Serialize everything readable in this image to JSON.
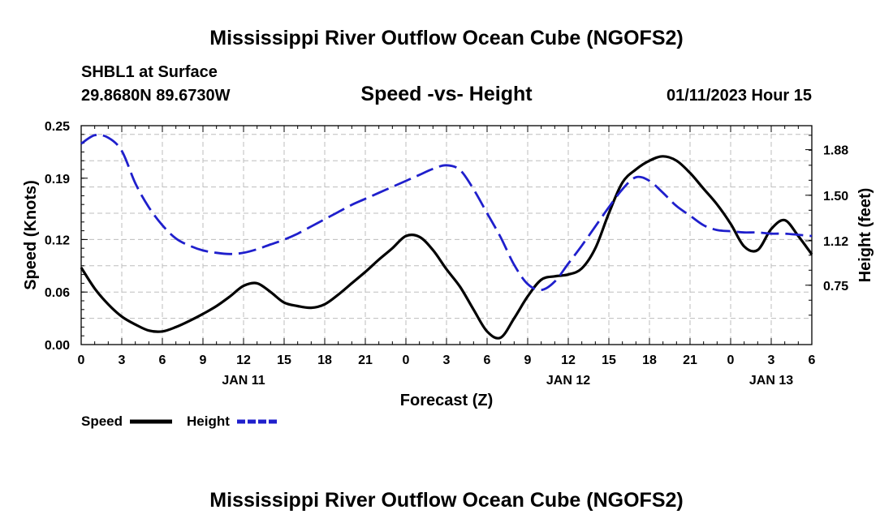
{
  "header": {
    "title": "Mississippi River Outflow Ocean Cube (NGOFS2)",
    "station": "SHBL1 at Surface",
    "coords": "29.8680N  89.6730W",
    "subtitle": "Speed -vs- Height",
    "datetime": "01/11/2023 Hour 15"
  },
  "footer": {
    "title": "Mississippi River Outflow Ocean Cube (NGOFS2)"
  },
  "legend": {
    "speed_label": "Speed",
    "height_label": "Height"
  },
  "colors": {
    "speed": "#000000",
    "height": "#1f1fcc",
    "grid": "#bdbdbd"
  },
  "chart_data": {
    "type": "line",
    "title": "Speed -vs- Height",
    "xlabel": "Forecast (Z)",
    "ylabel": "Speed (Knots)",
    "y2label": "Height (feet)",
    "xlim": [
      0,
      54
    ],
    "ylim": [
      0,
      0.25
    ],
    "y2lim": [
      0.255,
      2.08
    ],
    "xticks": [
      0,
      3,
      6,
      9,
      12,
      15,
      18,
      21,
      24,
      27,
      30,
      33,
      36,
      39,
      42,
      45,
      48,
      51,
      54
    ],
    "xtick_labels": [
      "0",
      "3",
      "6",
      "9",
      "12",
      "15",
      "18",
      "21",
      "0",
      "3",
      "6",
      "9",
      "12",
      "15",
      "18",
      "21",
      "0",
      "3",
      "6"
    ],
    "day_labels": [
      {
        "x": 12,
        "label": "JAN 11"
      },
      {
        "x": 36,
        "label": "JAN 12"
      },
      {
        "x": 51,
        "label": "JAN 13"
      }
    ],
    "yticks": [
      0,
      0.06,
      0.12,
      0.19,
      0.25
    ],
    "ytick_labels": [
      "0.00",
      "0.06",
      "0.12",
      "0.19",
      "0.25"
    ],
    "y2ticks": [
      0.75,
      1.12,
      1.5,
      1.88
    ],
    "y2tick_labels": [
      "0.75",
      "1.12",
      "1.50",
      "1.88"
    ],
    "legend_position": "bottom-left",
    "grid": true,
    "series": [
      {
        "name": "Speed",
        "axis": "left",
        "style": "solid",
        "x": [
          0,
          1,
          2,
          3,
          4,
          5,
          6,
          7,
          8,
          9,
          10,
          11,
          12,
          13,
          14,
          15,
          16,
          17,
          18,
          19,
          20,
          21,
          22,
          23,
          24,
          25,
          26,
          27,
          28,
          29,
          30,
          31,
          32,
          33,
          34,
          35,
          36,
          37,
          38,
          39,
          40,
          41,
          42,
          43,
          44,
          45,
          46,
          47,
          48,
          49,
          50,
          51,
          52,
          53,
          54
        ],
        "values": [
          0.088,
          0.064,
          0.046,
          0.032,
          0.023,
          0.016,
          0.015,
          0.02,
          0.027,
          0.035,
          0.044,
          0.055,
          0.067,
          0.07,
          0.06,
          0.048,
          0.044,
          0.042,
          0.046,
          0.057,
          0.07,
          0.083,
          0.097,
          0.11,
          0.124,
          0.123,
          0.108,
          0.086,
          0.066,
          0.04,
          0.015,
          0.008,
          0.03,
          0.055,
          0.074,
          0.078,
          0.08,
          0.087,
          0.11,
          0.15,
          0.185,
          0.2,
          0.21,
          0.215,
          0.21,
          0.196,
          0.178,
          0.16,
          0.138,
          0.112,
          0.108,
          0.132,
          0.142,
          0.124,
          0.103
        ]
      },
      {
        "name": "Height",
        "axis": "right",
        "style": "dashed",
        "x": [
          0,
          1,
          2,
          3,
          4,
          5,
          6,
          7,
          8,
          9,
          10,
          11,
          12,
          13,
          14,
          15,
          16,
          17,
          18,
          19,
          20,
          21,
          22,
          23,
          24,
          25,
          26,
          27,
          28,
          29,
          30,
          31,
          32,
          33,
          34,
          35,
          36,
          37,
          38,
          39,
          40,
          41,
          42,
          43,
          44,
          45,
          46,
          47,
          48,
          49,
          50,
          51,
          52,
          53,
          54
        ],
        "values": [
          1.93,
          2.0,
          1.98,
          1.87,
          1.6,
          1.4,
          1.25,
          1.14,
          1.08,
          1.04,
          1.02,
          1.01,
          1.02,
          1.05,
          1.09,
          1.13,
          1.18,
          1.24,
          1.3,
          1.36,
          1.42,
          1.47,
          1.52,
          1.57,
          1.62,
          1.67,
          1.72,
          1.75,
          1.71,
          1.55,
          1.35,
          1.15,
          0.92,
          0.76,
          0.71,
          0.78,
          0.93,
          1.08,
          1.24,
          1.4,
          1.55,
          1.65,
          1.62,
          1.52,
          1.41,
          1.33,
          1.25,
          1.21,
          1.2,
          1.19,
          1.19,
          1.18,
          1.18,
          1.17,
          1.16
        ]
      }
    ]
  }
}
